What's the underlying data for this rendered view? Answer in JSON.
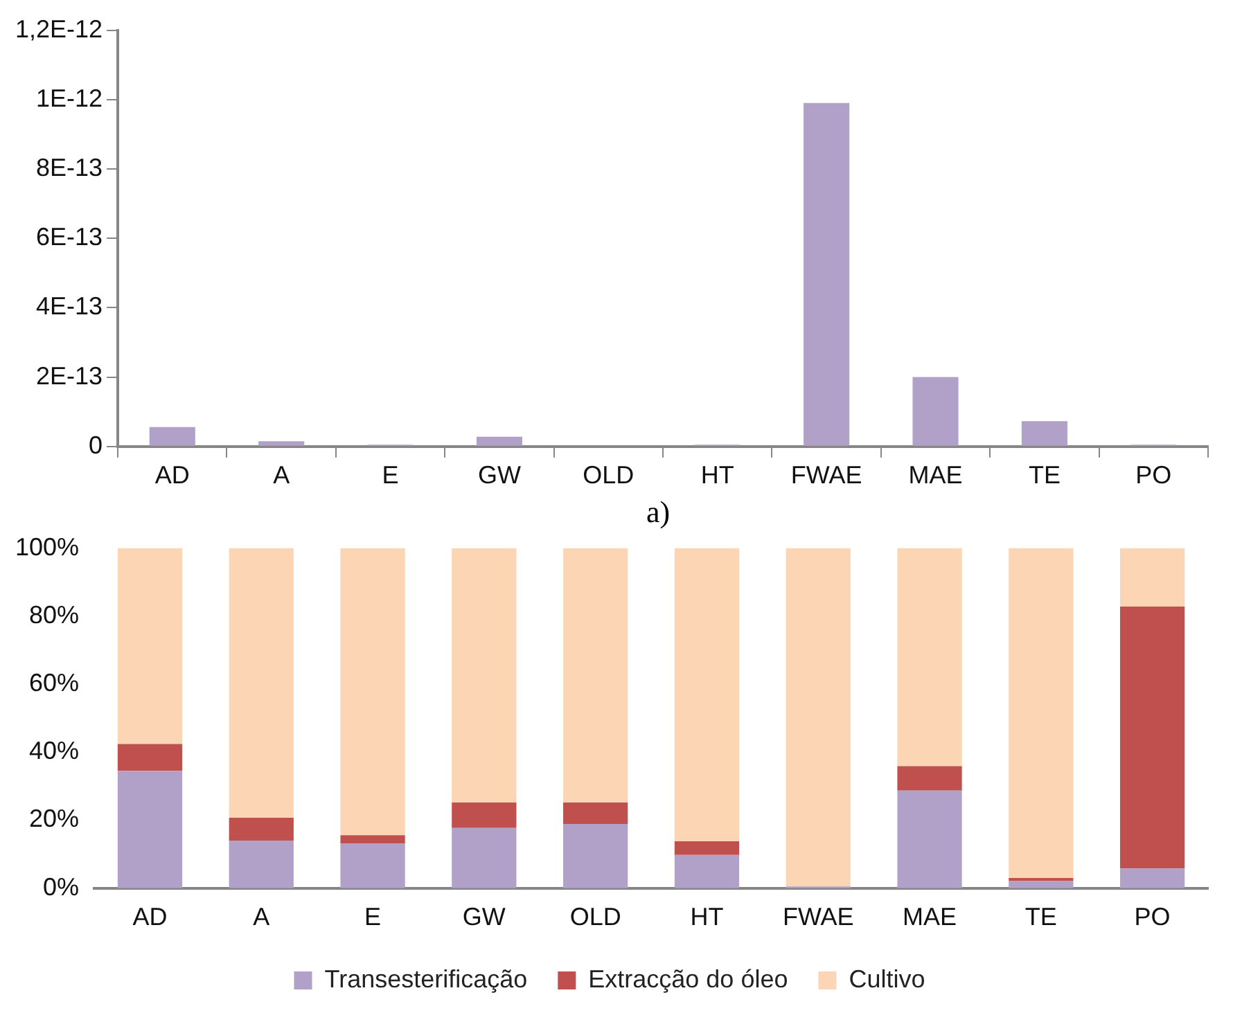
{
  "chart_data": [
    {
      "type": "bar",
      "categories": [
        "AD",
        "A",
        "E",
        "GW",
        "OLD",
        "HT",
        "FWAE",
        "MAE",
        "TE",
        "PO"
      ],
      "values": [
        5.6e-14,
        1.5e-14,
        5e-15,
        2.8e-14,
        0,
        5e-15,
        9.9e-13,
        2e-13,
        7.3e-14,
        5e-15
      ],
      "color": "#b1a0c7",
      "ylim": [
        0,
        1.2e-12
      ],
      "yticks": [
        {
          "value": 0,
          "label": "0"
        },
        {
          "value": 2e-13,
          "label": "2E-13"
        },
        {
          "value": 4e-13,
          "label": "4E-13"
        },
        {
          "value": 6e-13,
          "label": "6E-13"
        },
        {
          "value": 8e-13,
          "label": "8E-13"
        },
        {
          "value": 1e-12,
          "label": "1E-12"
        },
        {
          "value": 1.2e-12,
          "label": "1,2E-12"
        }
      ],
      "annotations": [
        "a)"
      ]
    },
    {
      "type": "bar",
      "stacked": true,
      "categories": [
        "AD",
        "A",
        "E",
        "GW",
        "OLD",
        "HT",
        "FWAE",
        "MAE",
        "TE",
        "PO"
      ],
      "series": [
        {
          "name": "Transesterificação",
          "color": "#b1a0c7",
          "values": [
            34.5,
            14.0,
            13.1,
            17.7,
            18.9,
            9.8,
            0.5,
            28.7,
            2.1,
            5.8
          ]
        },
        {
          "name": "Extracção do óleo",
          "color": "#c0504d",
          "values": [
            7.9,
            6.7,
            2.5,
            7.5,
            6.3,
            4.0,
            0,
            7.2,
            0.9,
            77.0
          ]
        },
        {
          "name": "Cultivo",
          "color": "#fcd5b5",
          "values": [
            57.6,
            79.3,
            84.4,
            74.8,
            74.8,
            86.2,
            99.5,
            64.1,
            97.0,
            17.2
          ]
        }
      ],
      "ylim": [
        0,
        100
      ],
      "yticks": [
        {
          "value": 0,
          "label": "0%"
        },
        {
          "value": 20,
          "label": "20%"
        },
        {
          "value": 40,
          "label": "40%"
        },
        {
          "value": 60,
          "label": "60%"
        },
        {
          "value": 80,
          "label": "80%"
        },
        {
          "value": 100,
          "label": "100%"
        }
      ],
      "legend": "bottom"
    }
  ]
}
